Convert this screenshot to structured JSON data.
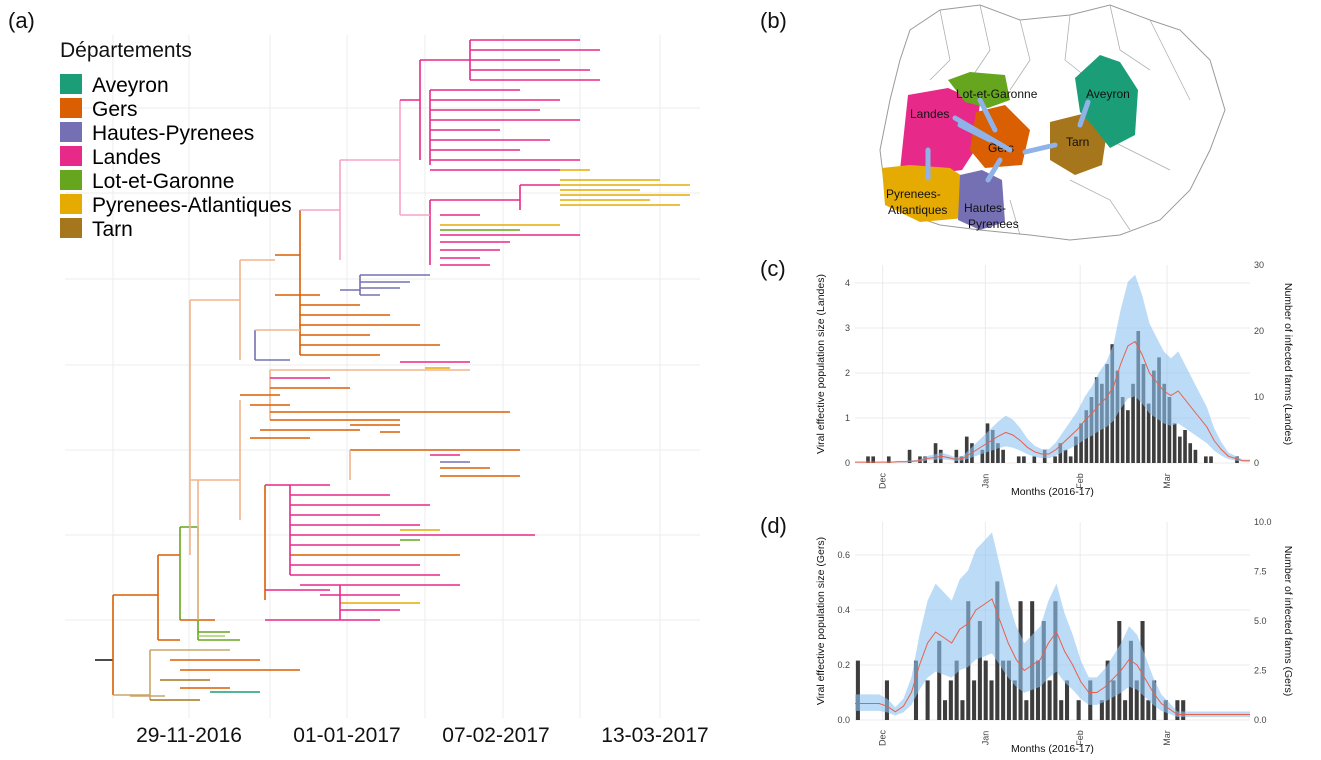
{
  "panels": {
    "a": "(a)",
    "b": "(b)",
    "c": "(c)",
    "d": "(d)"
  },
  "legend": {
    "title": "Départements",
    "items": [
      {
        "label": "Aveyron",
        "color": "#1b9e77"
      },
      {
        "label": "Gers",
        "color": "#d95f02"
      },
      {
        "label": "Hautes-Pyrenees",
        "color": "#7570b3"
      },
      {
        "label": "Landes",
        "color": "#e7298a"
      },
      {
        "label": "Lot-et-Garonne",
        "color": "#66a61e"
      },
      {
        "label": "Pyrenees-Atlantiques",
        "color": "#e6ab02"
      },
      {
        "label": "Tarn",
        "color": "#a6761d"
      }
    ]
  },
  "tree_dates": [
    "29-11-2016",
    "01-01-2017",
    "07-02-2017",
    "13-03-2017"
  ],
  "map": {
    "labels": [
      "Landes",
      "Lot-et-Garonne",
      "Aveyron",
      "Gers",
      "Tarn",
      "Pyrenees-",
      "Atlantiques",
      "Hautes-",
      "Pyrenees"
    ]
  },
  "chart_data": [
    {
      "type": "bar",
      "panel": "c",
      "x_label": "Months (2016-17)",
      "y_label": "Viral effective population size (Landes)",
      "y2_label": "Number of infected farms (Landes)",
      "x_ticks": [
        "Dec",
        "Jan",
        "Feb",
        "Mar"
      ],
      "y_ticks": [
        "0",
        "1",
        "2",
        "3",
        "4"
      ],
      "y2_ticks": [
        "0",
        "10",
        "20",
        "30"
      ],
      "ylim": [
        0,
        4.4
      ],
      "y2lim": [
        0,
        30
      ],
      "series": [
        {
          "name": "infected farms",
          "values": [
            0,
            0,
            1,
            1,
            0,
            0,
            1,
            0,
            0,
            0,
            2,
            0,
            1,
            1,
            0,
            3,
            2,
            0,
            0,
            2,
            1,
            4,
            3,
            0,
            2,
            6,
            5,
            3,
            2,
            0,
            0,
            1,
            1,
            0,
            1,
            0,
            2,
            0,
            1,
            3,
            2,
            1,
            4,
            6,
            8,
            10,
            13,
            12,
            15,
            18,
            14,
            10,
            8,
            12,
            20,
            15,
            9,
            14,
            16,
            12,
            10,
            6,
            4,
            5,
            3,
            2,
            0,
            1,
            1,
            0,
            0,
            0,
            0,
            1,
            0,
            0
          ]
        },
        {
          "name": "effective population size",
          "values": [
            0.02,
            0.02,
            0.02,
            0.02,
            0.02,
            0.02,
            0.03,
            0.03,
            0.04,
            0.05,
            0.1,
            0.12,
            0.15,
            0.12,
            0.08,
            0.1,
            0.2,
            0.3,
            0.4,
            0.5,
            0.6,
            0.68,
            0.62,
            0.5,
            0.35,
            0.25,
            0.2,
            0.2,
            0.3,
            0.45,
            0.6,
            0.75,
            0.95,
            1.1,
            1.3,
            1.45,
            1.7,
            2.2,
            2.6,
            2.7,
            2.4,
            2.0,
            1.8,
            1.6,
            1.5,
            1.6,
            1.4,
            1.2,
            1.0,
            0.8,
            0.5,
            0.3,
            0.15,
            0.1,
            0.05,
            0.05
          ]
        }
      ]
    },
    {
      "type": "bar",
      "panel": "d",
      "x_label": "Months (2016-17)",
      "y_label": "Viral effective population size (Gers)",
      "y2_label": "Number of infected farms (Gers)",
      "x_ticks": [
        "Dec",
        "Jan",
        "Feb",
        "Mar"
      ],
      "y_ticks": [
        "0.0",
        "0.2",
        "0.4",
        "0.6"
      ],
      "y2_ticks": [
        "0.0",
        "2.5",
        "5.0",
        "7.5",
        "10.0"
      ],
      "ylim": [
        0,
        0.72
      ],
      "y2lim": [
        0,
        10
      ],
      "series": [
        {
          "name": "infected farms",
          "values": [
            3,
            0,
            0,
            0,
            0,
            2,
            0,
            0,
            0,
            0,
            3,
            0,
            2,
            0,
            4,
            1,
            2,
            3,
            1,
            6,
            2,
            5,
            3,
            2,
            7,
            3,
            3,
            2,
            6,
            1,
            6,
            3,
            5,
            2,
            6,
            1,
            2,
            0,
            1,
            0,
            2,
            0,
            1,
            3,
            2,
            5,
            1,
            4,
            2,
            5,
            1,
            2,
            0,
            1,
            0,
            1,
            1,
            0,
            0,
            0,
            0,
            0,
            0,
            0,
            0,
            0,
            0,
            0
          ]
        },
        {
          "name": "effective population size",
          "values": [
            0.06,
            0.06,
            0.06,
            0.06,
            0.05,
            0.03,
            0.05,
            0.1,
            0.2,
            0.28,
            0.32,
            0.3,
            0.28,
            0.33,
            0.35,
            0.4,
            0.42,
            0.44,
            0.36,
            0.28,
            0.22,
            0.18,
            0.2,
            0.22,
            0.28,
            0.32,
            0.25,
            0.2,
            0.14,
            0.1,
            0.1,
            0.12,
            0.15,
            0.18,
            0.22,
            0.2,
            0.15,
            0.1,
            0.06,
            0.04,
            0.02,
            0.02,
            0.02,
            0.02,
            0.02,
            0.02,
            0.02,
            0.02,
            0.02,
            0.02
          ]
        }
      ]
    }
  ]
}
